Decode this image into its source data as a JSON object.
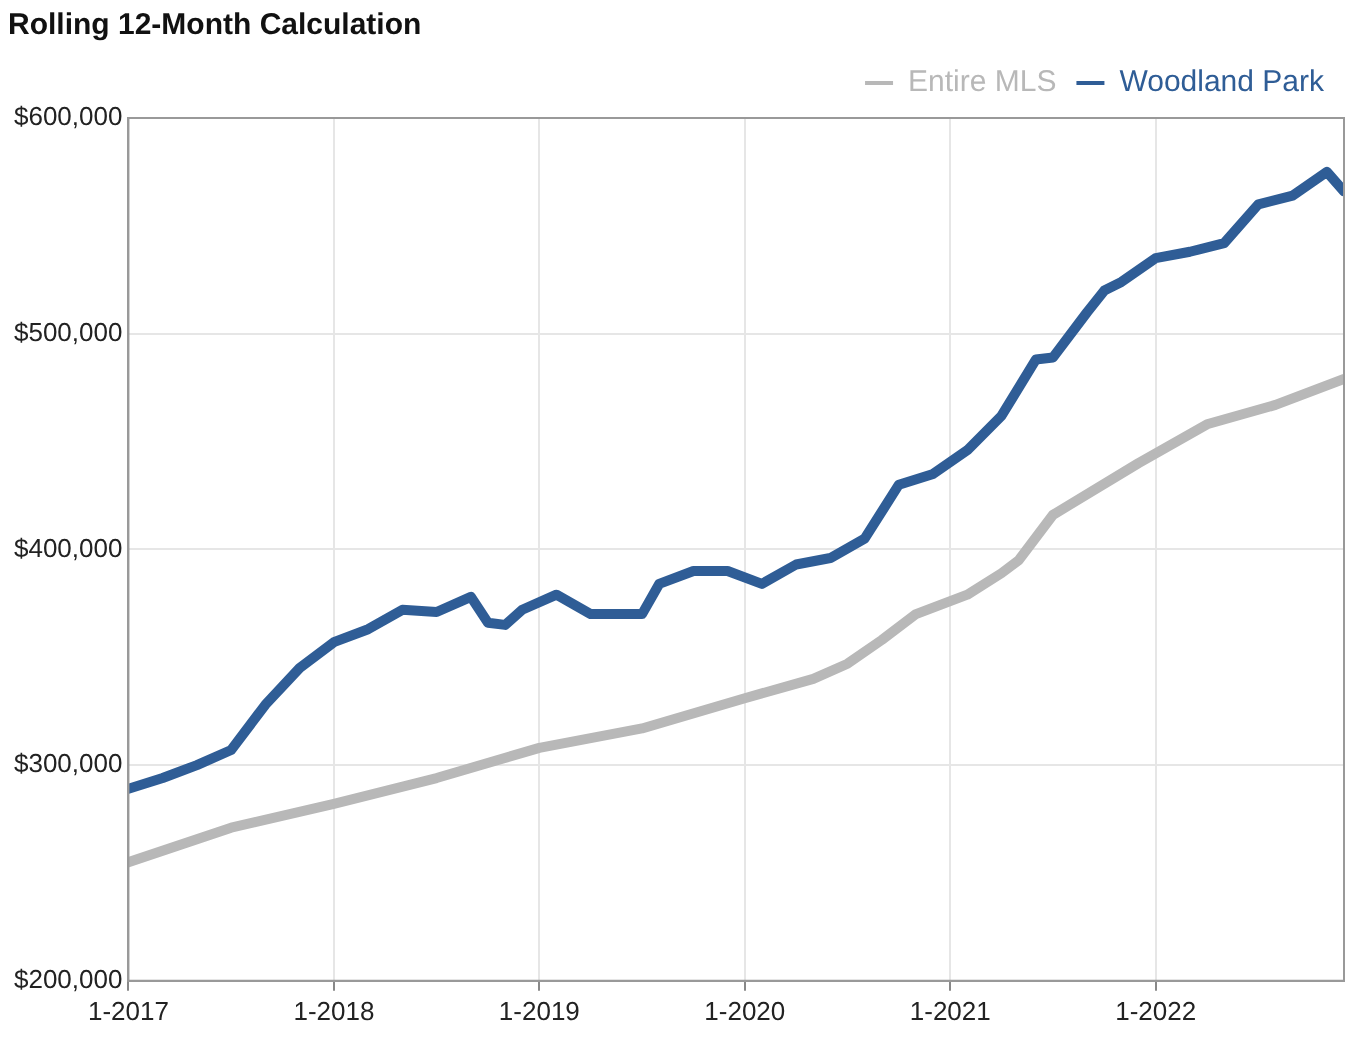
{
  "chart_data": {
    "type": "line",
    "title": "Rolling 12-Month Calculation",
    "xlim": [
      "2017-01",
      "2022-12"
    ],
    "xticks": [
      {
        "value": "2017-01",
        "label": "1-2017"
      },
      {
        "value": "2018-01",
        "label": "1-2018"
      },
      {
        "value": "2019-01",
        "label": "1-2019"
      },
      {
        "value": "2020-01",
        "label": "1-2020"
      },
      {
        "value": "2021-01",
        "label": "1-2021"
      },
      {
        "value": "2022-01",
        "label": "1-2022"
      }
    ],
    "ylim": [
      200000,
      600000
    ],
    "yticks": [
      {
        "value": 200000,
        "label": "$200,000"
      },
      {
        "value": 300000,
        "label": "$300,000"
      },
      {
        "value": 400000,
        "label": "$400,000"
      },
      {
        "value": 500000,
        "label": "$500,000"
      },
      {
        "value": 600000,
        "label": "$600,000"
      }
    ],
    "grid": true,
    "legend": "top right",
    "marker": "none",
    "line_style": "solid",
    "series": [
      {
        "name": "Entire MLS",
        "color": "#b8b8b8",
        "x": [
          "2017-01",
          "2017-07",
          "2018-01",
          "2018-07",
          "2019-01",
          "2019-07",
          "2020-01",
          "2020-05",
          "2020-07",
          "2020-09",
          "2020-11",
          "2021-02",
          "2021-04",
          "2021-05",
          "2021-07",
          "2021-12",
          "2022-04",
          "2022-08",
          "2022-12"
        ],
        "values": [
          255000,
          271000,
          282000,
          294000,
          308000,
          317000,
          331000,
          340000,
          347000,
          358000,
          370000,
          379000,
          389000,
          395000,
          416000,
          440000,
          458000,
          467000,
          479000
        ]
      },
      {
        "name": "Woodland Park",
        "color": "#2f5d96",
        "x": [
          "2017-01",
          "2017-03",
          "2017-05",
          "2017-07",
          "2017-09",
          "2017-11",
          "2018-01",
          "2018-03",
          "2018-05",
          "2018-07",
          "2018-09",
          "2018-10",
          "2018-11",
          "2018-12",
          "2019-02",
          "2019-04",
          "2019-07",
          "2019-08",
          "2019-10",
          "2019-12",
          "2020-02",
          "2020-04",
          "2020-06",
          "2020-08",
          "2020-10",
          "2020-12",
          "2021-02",
          "2021-04",
          "2021-06",
          "2021-07",
          "2021-09",
          "2021-10",
          "2021-11",
          "2022-01",
          "2022-03",
          "2022-05",
          "2022-07",
          "2022-09",
          "2022-11",
          "2022-12"
        ],
        "values": [
          289000,
          294000,
          300000,
          307000,
          328000,
          345000,
          357000,
          363000,
          372000,
          371000,
          378000,
          366000,
          365000,
          372000,
          379000,
          370000,
          370000,
          384000,
          390000,
          390000,
          384000,
          393000,
          396000,
          405000,
          430000,
          435000,
          446000,
          462000,
          488000,
          489000,
          510000,
          520000,
          524000,
          535000,
          538000,
          542000,
          560000,
          564000,
          575000,
          566000
        ]
      }
    ]
  }
}
